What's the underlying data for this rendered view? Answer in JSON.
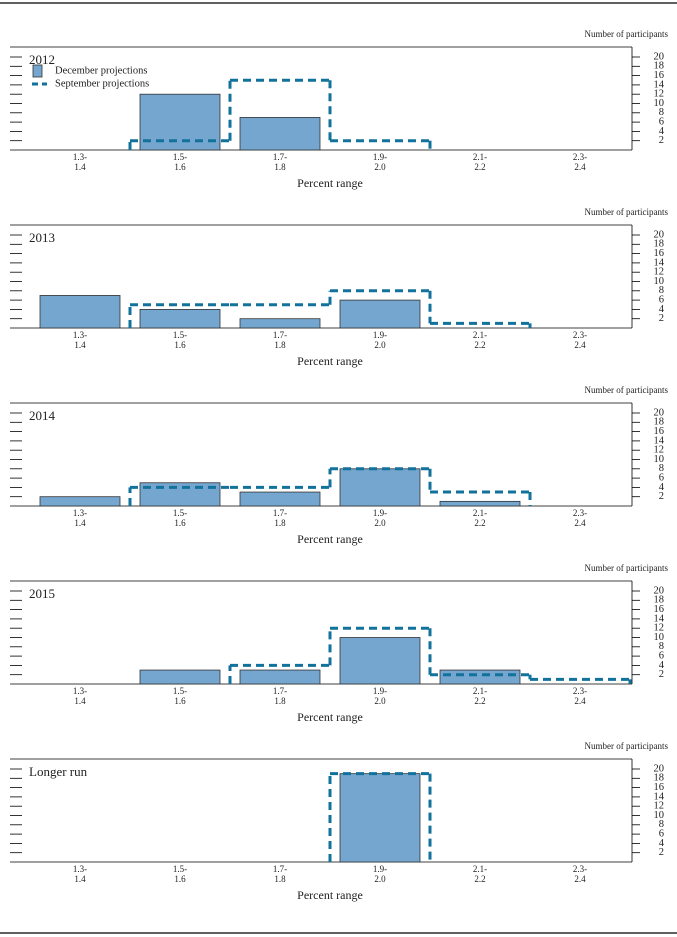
{
  "chart_data": [
    {
      "type": "bar",
      "title": "2012",
      "y_label": "Number of participants",
      "x_label": "Percent range",
      "categories": [
        [
          "1.3-",
          "1.4"
        ],
        [
          "1.5-",
          "1.6"
        ],
        [
          "1.7-",
          "1.8"
        ],
        [
          "1.9-",
          "2.0"
        ],
        [
          "2.1-",
          "2.2"
        ],
        [
          "2.3-",
          "2.4"
        ]
      ],
      "ylim": [
        0,
        20
      ],
      "yticks": [
        2,
        4,
        6,
        8,
        10,
        12,
        14,
        16,
        18,
        20
      ],
      "legend": "upper left",
      "series": [
        {
          "name": "December projections",
          "style": "bar",
          "color": "#74a6cf",
          "values": [
            0,
            12,
            7,
            0,
            0,
            0
          ]
        },
        {
          "name": "September projections",
          "style": "dashed-step",
          "color": "#12729c",
          "values": [
            0,
            2,
            15,
            2,
            0,
            0
          ]
        }
      ]
    },
    {
      "type": "bar",
      "title": "2013",
      "y_label": "Number of participants",
      "x_label": "Percent range",
      "categories": [
        [
          "1.3-",
          "1.4"
        ],
        [
          "1.5-",
          "1.6"
        ],
        [
          "1.7-",
          "1.8"
        ],
        [
          "1.9-",
          "2.0"
        ],
        [
          "2.1-",
          "2.2"
        ],
        [
          "2.3-",
          "2.4"
        ]
      ],
      "ylim": [
        0,
        20
      ],
      "yticks": [
        2,
        4,
        6,
        8,
        10,
        12,
        14,
        16,
        18,
        20
      ],
      "series": [
        {
          "style": "bar",
          "color": "#74a6cf",
          "values": [
            7,
            4,
            2,
            6,
            0,
            0
          ]
        },
        {
          "style": "dashed-step",
          "color": "#12729c",
          "values": [
            0,
            5,
            5,
            8,
            1,
            0
          ]
        }
      ]
    },
    {
      "type": "bar",
      "title": "2014",
      "y_label": "Number of participants",
      "x_label": "Percent range",
      "categories": [
        [
          "1.3-",
          "1.4"
        ],
        [
          "1.5-",
          "1.6"
        ],
        [
          "1.7-",
          "1.8"
        ],
        [
          "1.9-",
          "2.0"
        ],
        [
          "2.1-",
          "2.2"
        ],
        [
          "2.3-",
          "2.4"
        ]
      ],
      "ylim": [
        0,
        20
      ],
      "yticks": [
        2,
        4,
        6,
        8,
        10,
        12,
        14,
        16,
        18,
        20
      ],
      "series": [
        {
          "style": "bar",
          "color": "#74a6cf",
          "values": [
            2,
            5,
            3,
            8,
            1,
            0
          ]
        },
        {
          "style": "dashed-step",
          "color": "#12729c",
          "values": [
            0,
            4,
            4,
            8,
            3,
            0
          ]
        }
      ]
    },
    {
      "type": "bar",
      "title": "2015",
      "y_label": "Number of participants",
      "x_label": "Percent range",
      "categories": [
        [
          "1.3-",
          "1.4"
        ],
        [
          "1.5-",
          "1.6"
        ],
        [
          "1.7-",
          "1.8"
        ],
        [
          "1.9-",
          "2.0"
        ],
        [
          "2.1-",
          "2.2"
        ],
        [
          "2.3-",
          "2.4"
        ]
      ],
      "ylim": [
        0,
        20
      ],
      "yticks": [
        2,
        4,
        6,
        8,
        10,
        12,
        14,
        16,
        18,
        20
      ],
      "series": [
        {
          "style": "bar",
          "color": "#74a6cf",
          "values": [
            0,
            3,
            3,
            10,
            3,
            0
          ]
        },
        {
          "style": "dashed-step",
          "color": "#12729c",
          "values": [
            0,
            0,
            4,
            12,
            2,
            1
          ]
        }
      ]
    },
    {
      "type": "bar",
      "title": "Longer run",
      "y_label": "Number of participants",
      "x_label": "Percent range",
      "categories": [
        [
          "1.3-",
          "1.4"
        ],
        [
          "1.5-",
          "1.6"
        ],
        [
          "1.7-",
          "1.8"
        ],
        [
          "1.9-",
          "2.0"
        ],
        [
          "2.1-",
          "2.2"
        ],
        [
          "2.3-",
          "2.4"
        ]
      ],
      "ylim": [
        0,
        20
      ],
      "yticks": [
        2,
        4,
        6,
        8,
        10,
        12,
        14,
        16,
        18,
        20
      ],
      "series": [
        {
          "style": "bar",
          "color": "#74a6cf",
          "values": [
            0,
            0,
            0,
            19,
            0,
            0
          ]
        },
        {
          "style": "dashed-step",
          "color": "#12729c",
          "values": [
            0,
            0,
            0,
            19,
            0,
            0
          ]
        }
      ]
    }
  ]
}
